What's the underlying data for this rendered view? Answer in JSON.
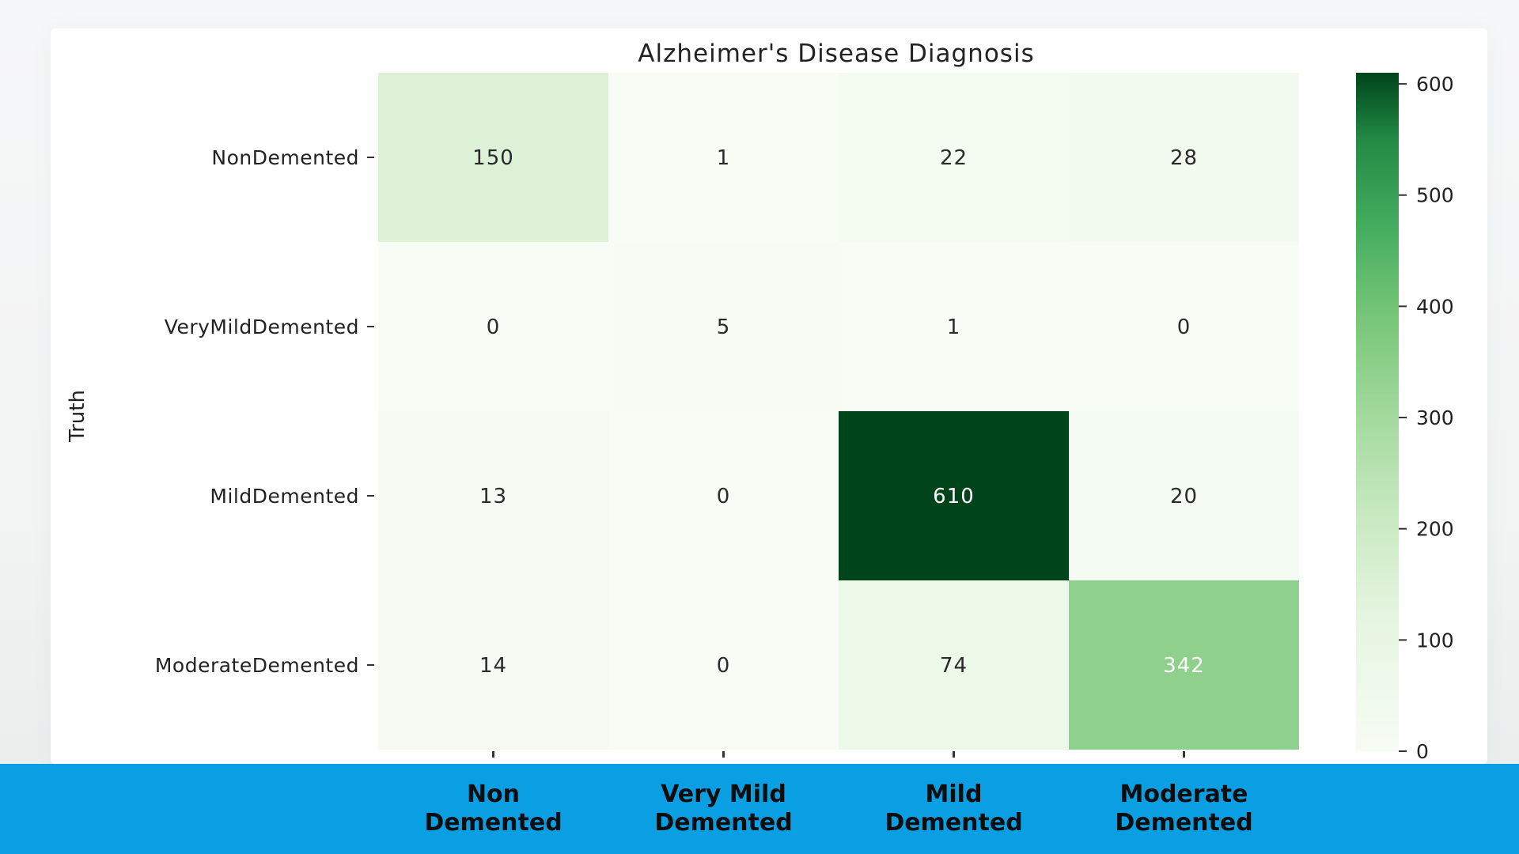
{
  "chart_data": {
    "type": "heatmap",
    "title": "Alzheimer's Disease Diagnosis",
    "ylabel": "Truth",
    "xlabel": "",
    "rows": [
      "NonDemented",
      "VeryMildDemented",
      "MildDemented",
      "ModerateDemented"
    ],
    "columns": [
      "Non\nDemented",
      "Very Mild\nDemented",
      "Mild\nDemented",
      "Moderate\nDemented"
    ],
    "values": [
      [
        150,
        1,
        22,
        28
      ],
      [
        0,
        5,
        1,
        0
      ],
      [
        13,
        0,
        610,
        20
      ],
      [
        14,
        0,
        74,
        342
      ]
    ],
    "colorbar": {
      "min": 0,
      "max": 610,
      "ticks": [
        0,
        100,
        200,
        300,
        400,
        500,
        600
      ]
    },
    "colormap": "Greens",
    "grid": false
  }
}
